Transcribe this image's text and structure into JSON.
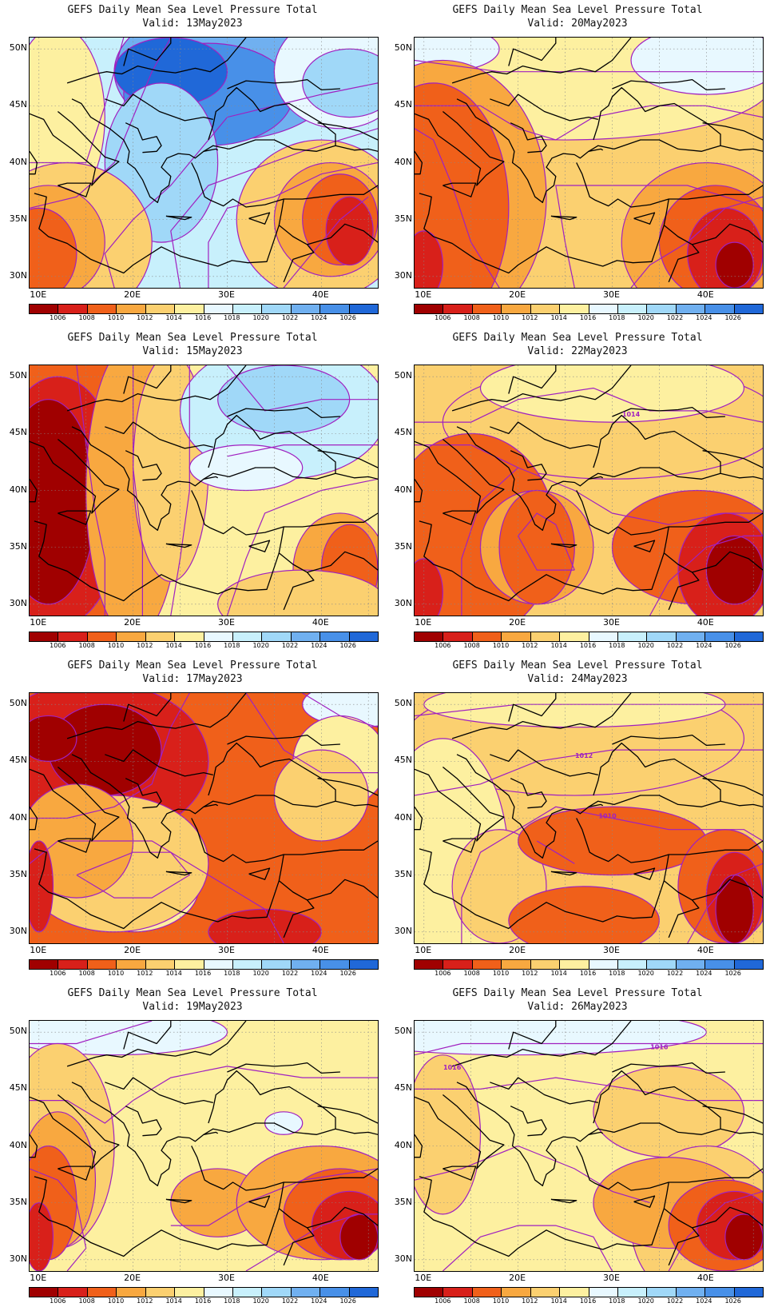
{
  "map_data": {
    "type": "contour_map",
    "lon_range": [
      9,
      46
    ],
    "lat_range": [
      29,
      51
    ],
    "lat_ticks": [
      "50N",
      "45N",
      "40N",
      "35N",
      "30N"
    ],
    "lon_ticks": [
      "10E",
      "20E",
      "30E",
      "40E"
    ],
    "colorbar": {
      "labels": [
        "1006",
        "1008",
        "1010",
        "1012",
        "1014",
        "1016",
        "1018",
        "1020",
        "1022",
        "1024",
        "1026"
      ],
      "colors": [
        "#a00000",
        "#d8201a",
        "#f0601a",
        "#f8a840",
        "#fbd070",
        "#fdf0a0",
        "#e8f8ff",
        "#c8f0fc",
        "#a0d8f8",
        "#70b0f0",
        "#4890e8",
        "#2068d8"
      ]
    },
    "contour_line_color": "#a020c0",
    "panels": [
      {
        "title": "GEFS Daily Mean Sea Level Pressure Total",
        "valid": "Valid: 13May2023",
        "base": "#c8f0fc",
        "inline_labels": []
      },
      {
        "title": "GEFS Daily Mean Sea Level Pressure Total",
        "valid": "Valid: 20May2023",
        "base": "#fbd070",
        "inline_labels": []
      },
      {
        "title": "GEFS Daily Mean Sea Level Pressure Total",
        "valid": "Valid: 15May2023",
        "base": "#fdf0a0",
        "inline_labels": []
      },
      {
        "title": "GEFS Daily Mean Sea Level Pressure Total",
        "valid": "Valid: 22May2023",
        "base": "#fbd070",
        "inline_labels": [
          "1014"
        ]
      },
      {
        "title": "GEFS Daily Mean Sea Level Pressure Total",
        "valid": "Valid: 17May2023",
        "base": "#f0601a",
        "inline_labels": []
      },
      {
        "title": "GEFS Daily Mean Sea Level Pressure Total",
        "valid": "Valid: 24May2023",
        "base": "#fbd070",
        "inline_labels": [
          "1012",
          "1010"
        ]
      },
      {
        "title": "GEFS Daily Mean Sea Level Pressure Total",
        "valid": "Valid: 19May2023",
        "base": "#fdf0a0",
        "inline_labels": []
      },
      {
        "title": "GEFS Daily Mean Sea Level Pressure Total",
        "valid": "Valid: 26May2023",
        "base": "#fdf0a0",
        "inline_labels": [
          "1016",
          "1016"
        ]
      }
    ]
  }
}
